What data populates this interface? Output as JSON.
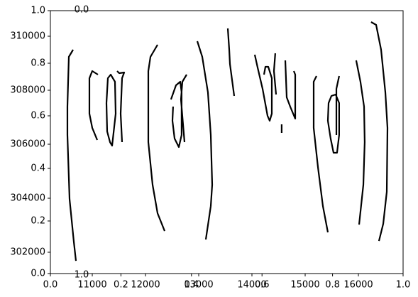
{
  "chart_data": [
    {
      "type": "axes",
      "xlim": [
        0,
        1
      ],
      "ylim": [
        0,
        1
      ],
      "xticks": [
        {
          "value": 0,
          "label": "0.0"
        },
        0.2,
        0.4,
        0.6,
        0.8,
        {
          "value": 1,
          "label": "1.0"
        }
      ],
      "yticks": [
        {
          "value": 0,
          "label": "0.0"
        },
        0.2,
        0.4,
        0.6,
        0.8,
        {
          "value": 1,
          "label": "1.0"
        }
      ],
      "annotations": [
        "0.0",
        "1.0"
      ]
    },
    {
      "type": "line",
      "xlim": [
        10213,
        16840
      ],
      "ylim": [
        301211,
        310947
      ],
      "xticks": [
        11000,
        12000,
        13000,
        14000,
        15000,
        16000
      ],
      "yticks": [
        302000,
        304000,
        306000,
        308000,
        310000
      ],
      "x": [
        10640,
        10560,
        10533,
        10533,
        10573,
        10653,
        10693,
        null,
        11106,
        11000,
        10946,
        10946,
        11000,
        11093,
        null,
        11266,
        11293,
        11346,
        11426,
        11440,
        11373,
        11333,
        11280,
        11266,
        null,
        11560,
        11533,
        11560,
        11600,
        11506,
        11466,
        null,
        12226,
        12093,
        12053,
        12053,
        12133,
        12226,
        12360,
        null,
        12479,
        12573,
        12653,
        12679,
        12679,
        12626,
        12546,
        12506,
        12519,
        null,
        12773,
        12693,
        12666,
        12733,
        null,
        12973,
        13066,
        13173,
        13226,
        13253,
        13226,
        13133,
        null,
        13546,
        13573,
        13586,
        13666,
        null,
        14053,
        14106,
        14200,
        14293,
        14333,
        14373,
        14373,
        14306,
        14253,
        14226,
        null,
        14439,
        14413,
        14453,
        null,
        14559,
        14559,
        null,
        14626,
        14653,
        14719,
        14813,
        14813,
        14786,
        null,
        15213,
        15160,
        15160,
        15240,
        15333,
        15426,
        null,
        15426,
        15440,
        15493,
        15573,
        15639,
        15639,
        15599,
        15533,
        15479,
        15426,
        null,
        15639,
        15586,
        15586,
        null,
        15959,
        16039,
        16106,
        16119,
        16093,
        16013,
        null,
        16239,
        16333,
        16426,
        16506,
        16546,
        16533,
        16466,
        16386
      ],
      "series": [
        {
          "color": "#000000",
          "values": [
            309500,
            309236,
            307394,
            306341,
            303972,
            302394,
            301683,
            null,
            308578,
            308710,
            308447,
            307131,
            306605,
            306157,
            null,
            307526,
            308447,
            308578,
            308315,
            307131,
            305947,
            306078,
            306473,
            307526,
            null,
            306078,
            307131,
            308447,
            308657,
            308631,
            308710,
            null,
            309684,
            309236,
            308710,
            306078,
            304499,
            303446,
            302788,
            null,
            307657,
            308184,
            308315,
            307920,
            306341,
            305894,
            306210,
            306868,
            307394,
            null,
            308578,
            308315,
            307657,
            306078,
            null,
            309815,
            309236,
            307920,
            306341,
            304499,
            303709,
            302472,
            null,
            310289,
            309500,
            308973,
            307789,
            null,
            309315,
            308841,
            308052,
            307052,
            306868,
            307131,
            308447,
            308868,
            308868,
            308578,
            null,
            309368,
            308710,
            307841,
            null,
            306736,
            306420,
            null,
            309105,
            307736,
            307394,
            306947,
            308578,
            308710,
            null,
            308526,
            308315,
            306605,
            305157,
            303709,
            302736,
            null,
            306868,
            307526,
            307789,
            307841,
            307526,
            306341,
            305683,
            305683,
            306210,
            306868,
            null,
            308526,
            308052,
            306341,
            null,
            309105,
            308315,
            307394,
            306078,
            304499,
            303025,
            null,
            310526,
            310421,
            309500,
            307920,
            306605,
            304236,
            303052,
            302420
          ]
        }
      ]
    }
  ]
}
